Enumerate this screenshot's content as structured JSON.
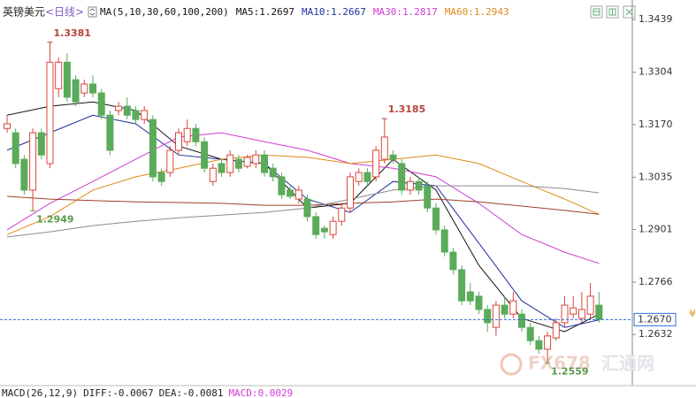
{
  "chart_data": {
    "type": "candlestick",
    "title": "英镑美元",
    "period": "<日线>",
    "indicator": "MA(5,10,30,60,100,200)",
    "open": [
      1.316,
      1.3149,
      1.3081,
      1.3002,
      1.3149,
      1.307,
      1.3262,
      1.333,
      1.3285,
      1.3251,
      1.3274,
      1.3251,
      1.3194,
      1.3206,
      1.3217,
      1.3206,
      1.3183,
      1.3183,
      1.3047,
      1.3047,
      1.3104,
      1.3126,
      1.316,
      1.3126,
      1.3024,
      1.307,
      1.3047,
      1.3081,
      1.3063,
      1.307,
      1.3092,
      1.3058,
      1.3036,
      1.3002,
      1.2979,
      1.2979,
      1.2934,
      1.2904,
      1.2888,
      1.2922,
      1.2956,
      1.3024,
      1.3047,
      1.3036,
      1.3081,
      1.3092,
      1.307,
      1.3002,
      1.3024,
      1.3013,
      1.2956,
      1.29,
      1.2843,
      1.2798,
      1.2741,
      1.273,
      1.2696,
      1.265,
      1.2707,
      1.2684,
      1.2684,
      1.265,
      1.2616,
      1.2594,
      1.2623,
      1.2662,
      1.2684,
      1.2673,
      1.2684,
      1.2707
    ],
    "high": [
      1.3194,
      1.316,
      1.3092,
      1.316,
      1.316,
      1.3381,
      1.3342,
      1.3353,
      1.3296,
      1.3285,
      1.3296,
      1.3262,
      1.3206,
      1.3228,
      1.324,
      1.3217,
      1.3217,
      1.3194,
      1.3058,
      1.3115,
      1.316,
      1.3183,
      1.3172,
      1.3138,
      1.307,
      1.3081,
      1.3104,
      1.3092,
      1.3092,
      1.3104,
      1.3104,
      1.307,
      1.3047,
      1.3013,
      1.3013,
      1.299,
      1.2945,
      1.2911,
      1.2934,
      1.2968,
      1.3047,
      1.3058,
      1.3058,
      1.3115,
      1.3185,
      1.3104,
      1.3081,
      1.3036,
      1.3036,
      1.3024,
      1.2968,
      1.2911,
      1.2854,
      1.2809,
      1.2764,
      1.2741,
      1.2707,
      1.2718,
      1.273,
      1.2741,
      1.2696,
      1.2662,
      1.2628,
      1.2639,
      1.2673,
      1.273,
      1.273,
      1.2741,
      1.2764,
      1.2741
    ],
    "low": [
      1.3149,
      1.3058,
      1.299,
      1.2949,
      1.3081,
      1.3058,
      1.324,
      1.3228,
      1.3217,
      1.324,
      1.324,
      1.3183,
      1.3092,
      1.3194,
      1.3183,
      1.3172,
      1.3172,
      1.3024,
      1.3013,
      1.3036,
      1.3092,
      1.3115,
      1.3115,
      1.3047,
      1.3013,
      1.3036,
      1.3036,
      1.3047,
      1.3058,
      1.3058,
      1.3036,
      1.3024,
      1.2979,
      1.2979,
      1.2968,
      1.2922,
      1.2877,
      1.2877,
      1.2877,
      1.2911,
      1.2945,
      1.3013,
      1.3013,
      1.3024,
      1.307,
      1.307,
      1.299,
      1.299,
      1.299,
      1.2945,
      1.2888,
      1.2832,
      1.2786,
      1.2707,
      1.2707,
      1.2684,
      1.2639,
      1.2628,
      1.2673,
      1.2673,
      1.2639,
      1.2605,
      1.2582,
      1.2559,
      1.2616,
      1.265,
      1.2673,
      1.2662,
      1.2673,
      1.2662
    ],
    "close": [
      1.3172,
      1.307,
      1.3002,
      1.3149,
      1.3092,
      1.333,
      1.333,
      1.324,
      1.3228,
      1.3274,
      1.3251,
      1.3194,
      1.3104,
      1.3217,
      1.3194,
      1.3183,
      1.3206,
      1.3036,
      1.3024,
      1.3104,
      1.3149,
      1.316,
      1.3126,
      1.3058,
      1.3058,
      1.3047,
      1.3092,
      1.3058,
      1.3086,
      1.3092,
      1.3047,
      1.3036,
      1.299,
      1.2986,
      1.3002,
      1.2934,
      1.2888,
      1.2895,
      1.2922,
      1.2956,
      1.3036,
      1.3047,
      1.3024,
      1.3104,
      1.3138,
      1.3081,
      1.3002,
      1.3024,
      1.3002,
      1.2956,
      1.29,
      1.2843,
      1.2798,
      1.2718,
      1.2718,
      1.2696,
      1.2662,
      1.2707,
      1.2684,
      1.2718,
      1.265,
      1.2616,
      1.2594,
      1.2628,
      1.2662,
      1.2707,
      1.27,
      1.2696,
      1.273,
      1.267
    ],
    "up_color": "#d9463a",
    "down_color": "#5aab5a",
    "ma_x": [
      0,
      5,
      10,
      15,
      20,
      25,
      30,
      35,
      40,
      45,
      50,
      55,
      60,
      65,
      69
    ],
    "series": [
      {
        "name": "MA5:",
        "last": 1.2697,
        "color": "#111111",
        "values": [
          1.3194,
          1.3217,
          1.3228,
          1.3206,
          1.3115,
          1.3081,
          1.307,
          1.2956,
          1.2968,
          1.3081,
          1.3002,
          1.2809,
          1.2673,
          1.2639,
          1.2684
        ]
      },
      {
        "name": "MA10:",
        "last": 1.2667,
        "color": "#1f2f9c",
        "values": [
          1.3104,
          1.3149,
          1.3194,
          1.3172,
          1.3092,
          1.3081,
          1.307,
          1.2979,
          1.2945,
          1.3024,
          1.3013,
          1.2866,
          1.2718,
          1.265,
          1.2669
        ]
      },
      {
        "name": "MA30:",
        "last": 1.2817,
        "color": "#d23ad2",
        "values": [
          1.29,
          1.2968,
          1.3024,
          1.3081,
          1.3138,
          1.3149,
          1.3126,
          1.3104,
          1.307,
          1.3058,
          1.3036,
          1.2968,
          1.2888,
          1.2843,
          1.2814
        ]
      },
      {
        "name": "MA60:",
        "last": 1.2943,
        "color": "#e08a1a",
        "values": [
          1.2888,
          1.2934,
          1.3002,
          1.3036,
          1.3058,
          1.3081,
          1.3092,
          1.3086,
          1.307,
          1.3081,
          1.3092,
          1.307,
          1.3024,
          1.2979,
          1.294
        ]
      },
      {
        "color": "#a0402a",
        "values": [
          1.2986,
          1.2979,
          1.2975,
          1.2972,
          1.297,
          1.2968,
          1.2963,
          1.2963,
          1.2968,
          1.2972,
          1.2979,
          1.2972,
          1.2961,
          1.295,
          1.294
        ]
      },
      {
        "color": "#8c8c8c",
        "values": [
          1.2882,
          1.2895,
          1.2911,
          1.2922,
          1.2931,
          1.2938,
          1.2945,
          1.2956,
          1.2979,
          1.3002,
          1.3013,
          1.3013,
          1.3013,
          1.3006,
          1.2995
        ]
      }
    ],
    "extreme_labels": [
      {
        "series": "high",
        "index": 5,
        "color": "#b5433a"
      },
      {
        "series": "low",
        "index": 3,
        "color": "#5a9a4a"
      },
      {
        "series": "high",
        "index": 44,
        "color": "#b5433a"
      },
      {
        "series": "low",
        "index": 63,
        "color": "#5a9a4a"
      }
    ],
    "ylim": [
      1.2503,
      1.3478
    ],
    "yticks": [
      1.3439,
      1.3304,
      {
        "value": 1.317,
        "label": "1.3170"
      },
      1.3035,
      1.2901,
      1.2766,
      1.2632
    ],
    "current_price": {
      "value": 1.267,
      "label": "1.2670"
    },
    "current_color": "#2a6fd6",
    "macd": {
      "name": "MACD(26,12,9)",
      "items": [
        {
          "label": "DIFF:",
          "value": -0.0067,
          "color": "#222222"
        },
        {
          "label": "DEA:",
          "value": -0.0081,
          "color": "#222222"
        },
        {
          "label": "MACD:",
          "value": 0.0029,
          "color": "#d23ad2"
        }
      ]
    },
    "watermark": [
      "FX678",
      "汇通网"
    ]
  }
}
